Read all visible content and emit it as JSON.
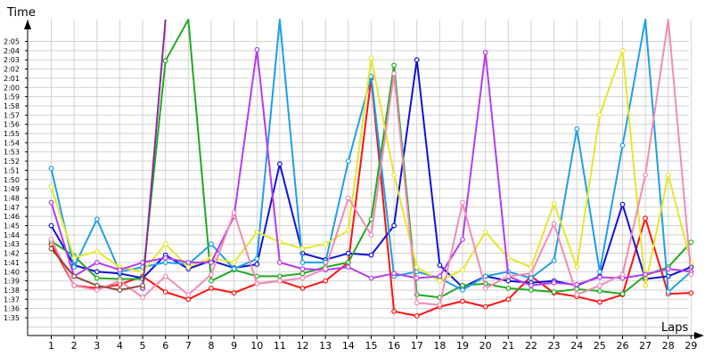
{
  "chart_data": {
    "type": "line",
    "title": "",
    "xlabel": "Laps",
    "ylabel": "Time",
    "categories": [
      "1",
      "2",
      "3",
      "4",
      "5",
      "6",
      "7",
      "8",
      "9",
      "10",
      "11",
      "12",
      "13",
      "14",
      "15",
      "16",
      "17",
      "18",
      "19",
      "20",
      "21",
      "22",
      "23",
      "24",
      "25",
      "26",
      "27",
      "28",
      "29"
    ],
    "yticks": [
      "1:35",
      "1:36",
      "1:37",
      "1:38",
      "1:39",
      "1:40",
      "1:41",
      "1:42",
      "1:43",
      "1:44",
      "1:45",
      "1:46",
      "1:47",
      "1:48",
      "1:49",
      "1:50",
      "1:51",
      "1:52",
      "1:53",
      "1:54",
      "1:55",
      "1:56",
      "1:57",
      "1:58",
      "1:59",
      "2:00",
      "2:01",
      "2:02",
      "2:03",
      "2:04",
      "2:05"
    ],
    "ylim_seconds": [
      92,
      125.5
    ],
    "grid": true,
    "legend": "none",
    "series": [
      {
        "color": "#ff1111",
        "values": [
          103,
          98.5,
          98.2,
          98.6,
          99.5,
          97.8,
          97,
          98.2,
          97.7,
          98.7,
          99,
          98.2,
          99,
          101,
          121,
          95.7,
          95.2,
          96.2,
          96.8,
          96.2,
          97,
          99.5,
          97.7,
          97.3,
          96.7,
          97.5,
          105.8,
          97.6,
          97.7
        ]
      },
      {
        "color": "#1111dd",
        "values": [
          105,
          100.7,
          100,
          99.8,
          99.3,
          101.8,
          100.3,
          101.2,
          100.4,
          100.8,
          111.7,
          102,
          101.3,
          102,
          101.8,
          105,
          123,
          100.7,
          98.3,
          99.5,
          99,
          98.8,
          99,
          98.5,
          99.5,
          107.3,
          99.2,
          99.5,
          100.5
        ]
      },
      {
        "color": "#22aa22",
        "values": [
          103.3,
          101.7,
          99.3,
          99.2,
          99.2,
          122.9,
          131,
          99,
          100.2,
          99.5,
          99.5,
          99.8,
          100.5,
          101,
          105.7,
          122.4,
          97.5,
          97.2,
          98.5,
          98.7,
          98.2,
          98,
          97.8,
          98.1,
          97.9,
          97.6,
          99.6,
          100.5,
          103.2
        ]
      },
      {
        "color": "#1e9fe6",
        "values": [
          111.2,
          100.5,
          105.7,
          100,
          100.5,
          101,
          100.8,
          103,
          100.3,
          101.4,
          131,
          101,
          101,
          112,
          121.2,
          99.5,
          100,
          99.3,
          98,
          99.5,
          100,
          99.3,
          101.2,
          115.5,
          100,
          113.7,
          131,
          97.8,
          100
        ]
      },
      {
        "color": "#e6e62e",
        "values": [
          109.2,
          101.5,
          102.2,
          100.5,
          100,
          103,
          100.5,
          101.5,
          101,
          104.3,
          103.2,
          102.5,
          103,
          104.5,
          123.2,
          110.5,
          100.5,
          99,
          100.2,
          104.3,
          101.5,
          100.5,
          107.4,
          100.5,
          117,
          124,
          98.5,
          110.5,
          101
        ]
      },
      {
        "color": "#b43cf0",
        "values": [
          107.5,
          99.5,
          101,
          100.2,
          101,
          101.5,
          101,
          101,
          106,
          124.1,
          101,
          100.3,
          100.2,
          100.5,
          99.3,
          99.8,
          99.3,
          99.5,
          103.5,
          123.8,
          99.5,
          98.5,
          98.8,
          98.6,
          99.4,
          99.3,
          99.7,
          100.3,
          100
        ]
      },
      {
        "color": "#f08cb4",
        "values": [
          103.5,
          98.5,
          98,
          99,
          97.2,
          99.5,
          97.5,
          99.7,
          106.4,
          98.7,
          99,
          99.3,
          100.3,
          108,
          104,
          121.5,
          96.6,
          96.4,
          107.5,
          98.2,
          99.5,
          99.8,
          105.2,
          97.5,
          98.5,
          99.7,
          110.5,
          131,
          99.7
        ]
      },
      {
        "color": "#8a2e9a",
        "values": [
          null,
          null,
          null,
          null,
          98.2,
          131,
          null,
          null,
          null,
          null,
          null,
          null,
          null,
          null,
          null,
          null,
          null,
          null,
          null,
          null,
          null,
          null,
          null,
          null,
          null,
          null,
          null,
          null,
          null
        ]
      },
      {
        "color": "#8b4a3a",
        "values": [
          102.5,
          99.5,
          98.5,
          98,
          98.5,
          null,
          null,
          null,
          null,
          null,
          null,
          null,
          null,
          null,
          null,
          null,
          null,
          null,
          null,
          null,
          null,
          null,
          null,
          null,
          null,
          null,
          null,
          null,
          null
        ]
      }
    ]
  }
}
